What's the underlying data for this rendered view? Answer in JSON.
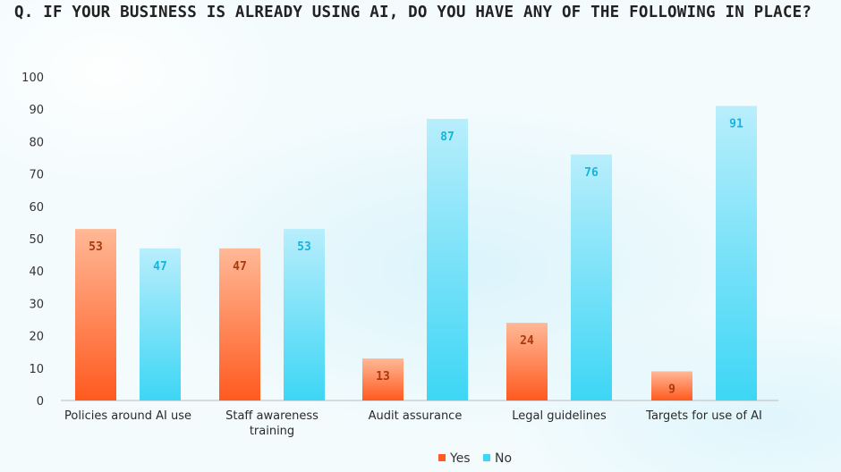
{
  "chart_data": {
    "type": "bar",
    "title": "Q. IF YOUR BUSINESS IS ALREADY USING AI, DO YOU HAVE ANY OF THE FOLLOWING IN PLACE?",
    "categories": [
      "Policies around AI use",
      "Staff awareness training",
      "Audit assurance",
      "Legal guidelines",
      "Targets for use of AI"
    ],
    "series": [
      {
        "name": "Yes",
        "values": [
          53,
          47,
          13,
          24,
          9
        ],
        "color": "#ff5a1f",
        "color_light": "#ffb896",
        "label_color": "#a8390e"
      },
      {
        "name": "No",
        "values": [
          47,
          53,
          87,
          76,
          91
        ],
        "color": "#3dd6f5",
        "color_light": "#b8eefc",
        "label_color": "#16b4dc"
      }
    ],
    "ylim": [
      0,
      100
    ],
    "yticks": [
      0,
      10,
      20,
      30,
      40,
      50,
      60,
      70,
      80,
      90,
      100
    ],
    "xlabel": "",
    "ylabel": "",
    "grid": false,
    "legend": "bottom-center",
    "data_labels": true
  }
}
